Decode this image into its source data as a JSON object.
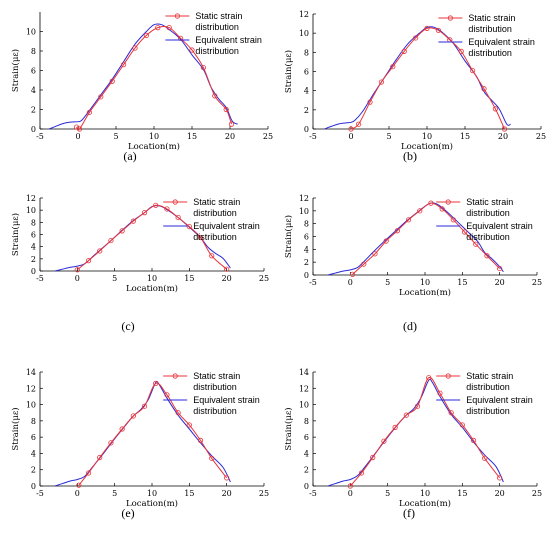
{
  "colors": {
    "static": "#e8343a",
    "equivalent": "#2a2ad8",
    "axis": "#000000"
  },
  "chart_data": [
    {
      "type": "line",
      "panel": "(a)",
      "xlabel": "Location(m)",
      "ylabel": "Strain(με)",
      "xlim": [
        -5,
        25
      ],
      "ylim": [
        0,
        12
      ],
      "xticks": [
        -5,
        0,
        5,
        10,
        15,
        20,
        25
      ],
      "yticks": [
        0,
        2,
        4,
        6,
        8,
        10
      ],
      "legend_position": "top-right",
      "series": [
        {
          "name": "Static strain distribution",
          "marker": "circle",
          "x": [
            -0.2,
            0.2,
            1.5,
            3,
            4.5,
            6,
            7.5,
            9,
            10.5,
            12,
            13.5,
            15,
            16.5,
            18,
            19.5,
            20.2
          ],
          "y": [
            0.2,
            0,
            1.7,
            3.3,
            4.9,
            6.6,
            8.3,
            9.6,
            10.4,
            10.4,
            9.3,
            8.1,
            6.3,
            3.4,
            2,
            0.5
          ]
        },
        {
          "name": "Equivalent strain distribution",
          "marker": "none",
          "x": [
            -3.8,
            -3,
            -2,
            -1,
            0,
            0.5,
            1.5,
            3,
            4.5,
            6,
            7.5,
            9,
            10,
            11,
            12,
            13.5,
            15,
            16.5,
            17.5,
            18.5,
            19.5,
            20.3,
            21
          ],
          "y": [
            0,
            0.25,
            0.55,
            0.7,
            0.75,
            0.9,
            1.9,
            3.5,
            5.1,
            6.9,
            8.7,
            10,
            10.7,
            10.7,
            10.2,
            9.2,
            7.6,
            6.1,
            4.3,
            3.1,
            2.2,
            0.8,
            0.5
          ]
        }
      ]
    },
    {
      "type": "line",
      "panel": "(b)",
      "xlabel": "Location(m)",
      "ylabel": "Strain(με)",
      "xlim": [
        -5,
        25
      ],
      "ylim": [
        0,
        12
      ],
      "xticks": [
        -5,
        0,
        5,
        10,
        15,
        20,
        25
      ],
      "yticks": [
        0,
        2,
        4,
        6,
        8,
        10,
        12
      ],
      "legend_position": "top-right",
      "series": [
        {
          "name": "Static strain distribution",
          "marker": "circle",
          "x": [
            0,
            1,
            2.5,
            4,
            5.5,
            7,
            8.5,
            10,
            11.5,
            13,
            14.5,
            16,
            17.5,
            19,
            20.2
          ],
          "y": [
            0,
            0.5,
            2.8,
            4.9,
            6.5,
            8.1,
            9.5,
            10.5,
            10.3,
            9.3,
            8.1,
            6.1,
            4.2,
            2.1,
            0
          ]
        },
        {
          "name": "Equivalent strain distribution",
          "marker": "none",
          "x": [
            -3.5,
            -2.5,
            -1.5,
            -0.5,
            0,
            0.5,
            1.5,
            3,
            4.5,
            6,
            7.5,
            9,
            10,
            11,
            12,
            13.5,
            15,
            16.5,
            17.5,
            18.5,
            19.5,
            20.5,
            21
          ],
          "y": [
            0,
            0.3,
            0.55,
            0.65,
            0.7,
            0.9,
            1.8,
            3.7,
            5.5,
            7.3,
            8.9,
            10,
            10.6,
            10.6,
            10.1,
            8.9,
            7.1,
            5.5,
            3.9,
            3,
            2.1,
            0.5,
            0.5
          ]
        }
      ]
    },
    {
      "type": "line",
      "panel": "(c)",
      "xlabel": "Location(m)",
      "ylabel": "Strain(με)",
      "xlim": [
        -5,
        25
      ],
      "ylim": [
        0,
        12
      ],
      "xticks": [
        -5,
        0,
        5,
        10,
        15,
        20,
        25
      ],
      "yticks": [
        0,
        2,
        4,
        6,
        8,
        10,
        12
      ],
      "legend_position": "top-right",
      "series": [
        {
          "name": "Static strain distribution",
          "marker": "circle",
          "x": [
            0,
            1.5,
            3,
            4.5,
            6,
            7.5,
            9,
            10.5,
            12,
            13.5,
            15,
            16.5,
            18,
            20
          ],
          "y": [
            0.2,
            1.7,
            3.3,
            5,
            6.6,
            8.2,
            9.6,
            10.8,
            10.2,
            8.8,
            7.3,
            5.5,
            2.5,
            0.3
          ]
        },
        {
          "name": "Equivalent strain distribution",
          "marker": "none",
          "x": [
            -3,
            -2,
            -1,
            0,
            1,
            2,
            3,
            4.5,
            6,
            7.5,
            9,
            10,
            11,
            12,
            13.5,
            15,
            16.5,
            17.5,
            18.5,
            19.5,
            20.5
          ],
          "y": [
            0,
            0.3,
            0.6,
            0.8,
            1.2,
            2.3,
            3.4,
            5,
            6.7,
            8.3,
            9.6,
            10.6,
            10.7,
            10.1,
            8.8,
            7.2,
            5.5,
            3.9,
            2.9,
            2.1,
            0.5
          ]
        }
      ]
    },
    {
      "type": "line",
      "panel": "(d)",
      "xlabel": "Location(m)",
      "ylabel": "Strain(με)",
      "xlim": [
        -5,
        25
      ],
      "ylim": [
        0,
        12
      ],
      "xticks": [
        -5,
        0,
        5,
        10,
        15,
        20,
        25
      ],
      "yticks": [
        0,
        2,
        4,
        6,
        8,
        10,
        12
      ],
      "legend_position": "top-right",
      "series": [
        {
          "name": "Static strain distribution",
          "marker": "circle",
          "x": [
            0.3,
            1.8,
            3.3,
            4.8,
            6.3,
            7.8,
            9.3,
            10.8,
            12.3,
            13.8,
            15.3,
            16.8,
            18.3,
            20
          ],
          "y": [
            0.1,
            1.7,
            3.3,
            5.3,
            6.9,
            8.6,
            10,
            11.2,
            10.3,
            8.6,
            6.7,
            4.8,
            3,
            1
          ]
        },
        {
          "name": "Equivalent strain distribution",
          "marker": "none",
          "x": [
            -3,
            -2,
            -1,
            0,
            1,
            2,
            3,
            4.5,
            6,
            7.5,
            9,
            10.5,
            11.5,
            12.5,
            14,
            15.5,
            17,
            18,
            19,
            20,
            20.5
          ],
          "y": [
            0,
            0.3,
            0.6,
            0.8,
            1.2,
            2.3,
            3.5,
            5.2,
            6.8,
            8.4,
            9.8,
            11.1,
            11.1,
            10.3,
            8.7,
            7,
            5.3,
            3.5,
            2.5,
            1.3,
            0.5
          ]
        }
      ]
    },
    {
      "type": "line",
      "panel": "(e)",
      "xlabel": "Location(m)",
      "ylabel": "Strain(με)",
      "xlim": [
        -5,
        25
      ],
      "ylim": [
        0,
        14
      ],
      "xticks": [
        -5,
        0,
        5,
        10,
        15,
        20,
        25
      ],
      "yticks": [
        0,
        2,
        4,
        6,
        8,
        10,
        12,
        14
      ],
      "legend_position": "top-right",
      "series": [
        {
          "name": "Static strain distribution",
          "marker": "circle",
          "x": [
            0.2,
            1.5,
            3,
            4.5,
            6,
            7.5,
            9,
            10.5,
            12,
            13.5,
            15,
            16.5,
            18,
            20
          ],
          "y": [
            0.1,
            1.6,
            3.5,
            5.3,
            7,
            8.6,
            9.8,
            12.6,
            11.2,
            9,
            7.5,
            5.6,
            3.4,
            1
          ]
        },
        {
          "name": "Equivalent strain distribution",
          "marker": "none",
          "x": [
            -3,
            -2,
            -1,
            0,
            1,
            2,
            3.5,
            5,
            6.5,
            7.5,
            8.5,
            9.5,
            10.5,
            11,
            12,
            13.5,
            15,
            16.5,
            18,
            19.5,
            20.5
          ],
          "y": [
            0,
            0.3,
            0.6,
            0.8,
            1.2,
            2.3,
            4,
            5.8,
            7.5,
            8.6,
            9.4,
            10.6,
            12.7,
            12.4,
            10.8,
            8.7,
            7,
            5.3,
            3.7,
            2.3,
            0.5
          ]
        }
      ]
    },
    {
      "type": "line",
      "panel": "(f)",
      "xlabel": "Location(m)",
      "ylabel": "Strain(με)",
      "xlim": [
        -5,
        25
      ],
      "ylim": [
        0,
        14
      ],
      "xticks": [
        -5,
        0,
        5,
        10,
        15,
        20,
        25
      ],
      "yticks": [
        0,
        2,
        4,
        6,
        8,
        10,
        12,
        14
      ],
      "legend_position": "top-right",
      "series": [
        {
          "name": "Static strain distribution",
          "marker": "circle",
          "x": [
            0,
            1.5,
            3,
            4.5,
            6,
            7.5,
            9,
            10.5,
            12,
            13.5,
            15,
            16.5,
            18,
            20
          ],
          "y": [
            0,
            1.6,
            3.5,
            5.5,
            7.2,
            8.7,
            9.8,
            13.3,
            11.4,
            9,
            7.5,
            5.6,
            3.4,
            1
          ]
        },
        {
          "name": "Equivalent strain distribution",
          "marker": "none",
          "x": [
            -3,
            -2,
            -1,
            0,
            1,
            2,
            3.5,
            5,
            6.5,
            7.5,
            8.5,
            9.5,
            10.5,
            11,
            12,
            13.5,
            15,
            16.5,
            18,
            19.5,
            20.5
          ],
          "y": [
            0,
            0.3,
            0.6,
            0.8,
            1.3,
            2.4,
            4.2,
            6,
            7.7,
            8.7,
            9.5,
            10.9,
            13,
            12.7,
            11,
            8.8,
            7.2,
            5.4,
            3.8,
            2.4,
            0.5
          ]
        }
      ]
    }
  ]
}
